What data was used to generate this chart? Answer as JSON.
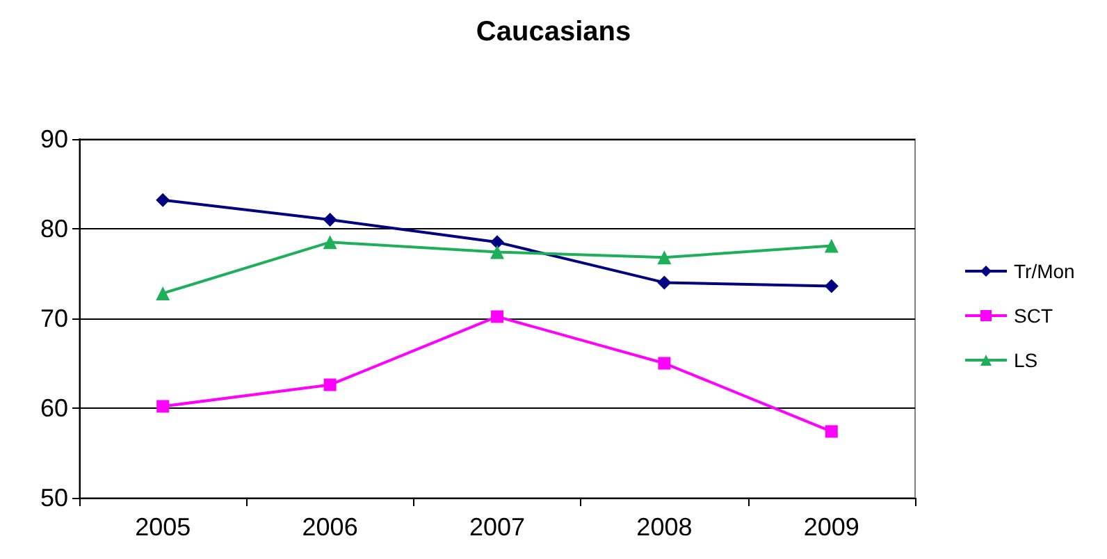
{
  "chart_data": {
    "type": "line",
    "title": "Caucasians",
    "categories": [
      "2005",
      "2006",
      "2007",
      "2008",
      "2009"
    ],
    "series": [
      {
        "name": "Tr/Mon",
        "color": "#000080",
        "marker": "diamond",
        "values": [
          83.2,
          81.0,
          78.5,
          74.0,
          73.6
        ]
      },
      {
        "name": "SCT",
        "color": "#ff00ff",
        "marker": "square",
        "values": [
          60.2,
          62.6,
          70.2,
          65.0,
          57.4
        ]
      },
      {
        "name": "LS",
        "color": "#1fae5a",
        "marker": "triangle",
        "values": [
          72.8,
          78.5,
          77.4,
          76.8,
          78.1
        ]
      }
    ],
    "ylim": [
      50,
      90
    ],
    "yticks": [
      50,
      60,
      70,
      80,
      90
    ],
    "grid": "y",
    "legend": "right"
  }
}
